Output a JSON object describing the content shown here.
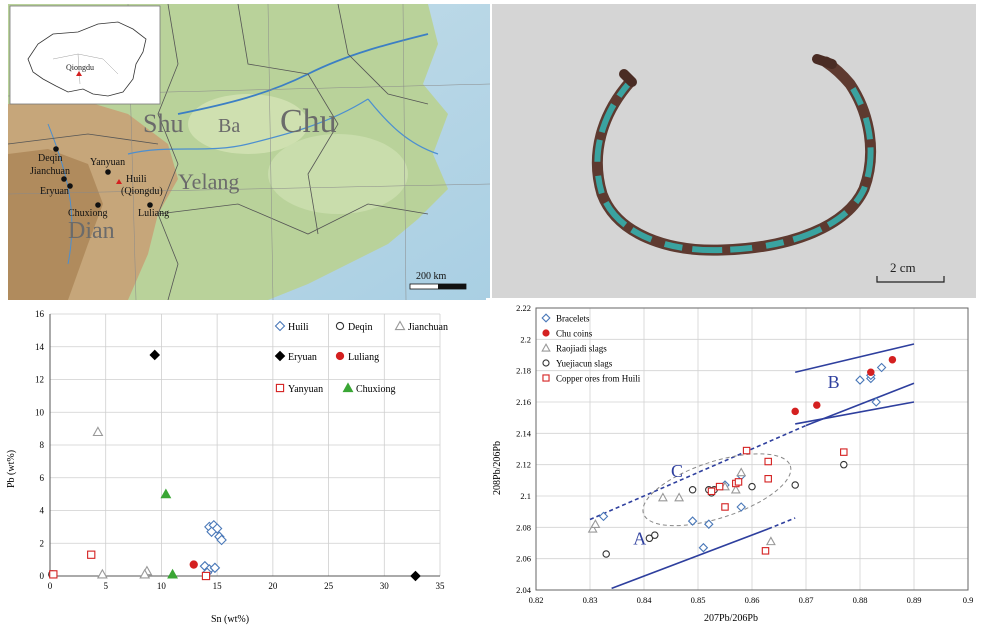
{
  "map": {
    "inset_label": "Qiongdu",
    "regions": [
      "Shu",
      "Ba",
      "Chu",
      "Yelang",
      "Dian"
    ],
    "sites": [
      "Deqin",
      "Jianchuan",
      "Eryuan",
      "Yanyuan",
      "Huili",
      "(Qiongdu)",
      "Chuxiong",
      "Luliang"
    ],
    "scale_label": "200 km"
  },
  "photo": {
    "scale_label": "2 cm"
  },
  "chart_data": [
    {
      "type": "scatter",
      "xlabel": "Sn (wt%)",
      "ylabel": "Pb (wt%)",
      "xlim": [
        0,
        35
      ],
      "ylim": [
        0,
        16
      ],
      "xticks": [
        0,
        5,
        10,
        15,
        20,
        25,
        30,
        35
      ],
      "yticks": [
        0,
        2,
        4,
        6,
        8,
        10,
        12,
        14,
        16
      ],
      "legend_position": "top-right",
      "series": [
        {
          "name": "Huili",
          "marker": "diamond-open",
          "color": "#4a78b8",
          "points": [
            [
              14.3,
              3.0
            ],
            [
              14.7,
              3.1
            ],
            [
              15.0,
              2.9
            ],
            [
              14.5,
              2.7
            ],
            [
              15.2,
              2.4
            ],
            [
              15.4,
              2.2
            ],
            [
              13.9,
              0.6
            ],
            [
              14.3,
              0.4
            ],
            [
              14.8,
              0.5
            ],
            [
              14.1,
              0.2
            ]
          ]
        },
        {
          "name": "Deqin",
          "marker": "circle-open",
          "color": "#333333",
          "points": [
            [
              0.2,
              0.1
            ]
          ]
        },
        {
          "name": "Jianchuan",
          "marker": "triangle-open",
          "color": "#999999",
          "points": [
            [
              4.3,
              8.8
            ],
            [
              4.7,
              0.1
            ],
            [
              8.7,
              0.3
            ],
            [
              8.5,
              0.1
            ]
          ]
        },
        {
          "name": "Eryuan",
          "marker": "diamond-filled",
          "color": "#000000",
          "points": [
            [
              9.4,
              13.5
            ],
            [
              32.8,
              0.0
            ]
          ]
        },
        {
          "name": "Luliang",
          "marker": "circle-filled",
          "color": "#d42020",
          "points": [
            [
              12.9,
              0.7
            ]
          ]
        },
        {
          "name": "Yanyuan",
          "marker": "square-open",
          "color": "#d42020",
          "points": [
            [
              0.3,
              0.1
            ],
            [
              3.7,
              1.3
            ],
            [
              14.0,
              0.0
            ]
          ]
        },
        {
          "name": "Chuxiong",
          "marker": "triangle-filled",
          "color": "#3aa635",
          "points": [
            [
              10.4,
              5.0
            ],
            [
              11.0,
              0.1
            ]
          ]
        }
      ]
    },
    {
      "type": "scatter",
      "xlabel": "207Pb/206Pb",
      "ylabel": "208Pb/206Pb",
      "xlim": [
        0.82,
        0.9
      ],
      "ylim": [
        2.04,
        2.22
      ],
      "xticks": [
        "0.82",
        "0.83",
        "0.84",
        "0.85",
        "0.86",
        "0.87",
        "0.88",
        "0.89",
        "0.9"
      ],
      "yticks": [
        "2.04",
        "2.06",
        "2.08",
        "2.1",
        "2.12",
        "2.14",
        "2.16",
        "2.18",
        "2.2",
        "2.22"
      ],
      "legend_position": "top-left",
      "annotations": [
        "A",
        "B",
        "C"
      ],
      "series": [
        {
          "name": "Bracelets",
          "marker": "diamond-open",
          "color": "#4a78b8",
          "points": [
            [
              0.8325,
              2.087
            ],
            [
              0.849,
              2.084
            ],
            [
              0.851,
              2.067
            ],
            [
              0.852,
              2.082
            ],
            [
              0.855,
              2.107
            ],
            [
              0.858,
              2.093
            ],
            [
              0.858,
              2.113
            ],
            [
              0.88,
              2.174
            ],
            [
              0.882,
              2.175
            ],
            [
              0.882,
              2.177
            ],
            [
              0.883,
              2.16
            ],
            [
              0.884,
              2.182
            ]
          ]
        },
        {
          "name": "Chu coins",
          "marker": "circle-filled",
          "color": "#d42020",
          "points": [
            [
              0.868,
              2.154
            ],
            [
              0.872,
              2.158
            ],
            [
              0.882,
              2.179
            ],
            [
              0.886,
              2.187
            ]
          ]
        },
        {
          "name": "Raojiadi slags",
          "marker": "triangle-open",
          "color": "#999999",
          "points": [
            [
              0.8305,
              2.079
            ],
            [
              0.831,
              2.082
            ],
            [
              0.8435,
              2.099
            ],
            [
              0.8465,
              2.099
            ],
            [
              0.855,
              2.106
            ],
            [
              0.857,
              2.104
            ],
            [
              0.858,
              2.115
            ],
            [
              0.8635,
              2.071
            ]
          ]
        },
        {
          "name": "Yuejiacun slags",
          "marker": "circle-open",
          "color": "#333333",
          "points": [
            [
              0.833,
              2.063
            ],
            [
              0.841,
              2.073
            ],
            [
              0.842,
              2.075
            ],
            [
              0.849,
              2.104
            ],
            [
              0.852,
              2.104
            ],
            [
              0.8525,
              2.102
            ],
            [
              0.853,
              2.104
            ],
            [
              0.86,
              2.106
            ],
            [
              0.868,
              2.107
            ],
            [
              0.877,
              2.12
            ]
          ]
        },
        {
          "name": "Copper ores from Huili",
          "marker": "square-open",
          "color": "#d42020",
          "points": [
            [
              0.8525,
              2.103
            ],
            [
              0.854,
              2.106
            ],
            [
              0.855,
              2.093
            ],
            [
              0.857,
              2.108
            ],
            [
              0.8575,
              2.109
            ],
            [
              0.859,
              2.129
            ],
            [
              0.8625,
              2.065
            ],
            [
              0.863,
              2.111
            ],
            [
              0.863,
              2.122
            ],
            [
              0.877,
              2.128
            ]
          ]
        }
      ]
    }
  ]
}
